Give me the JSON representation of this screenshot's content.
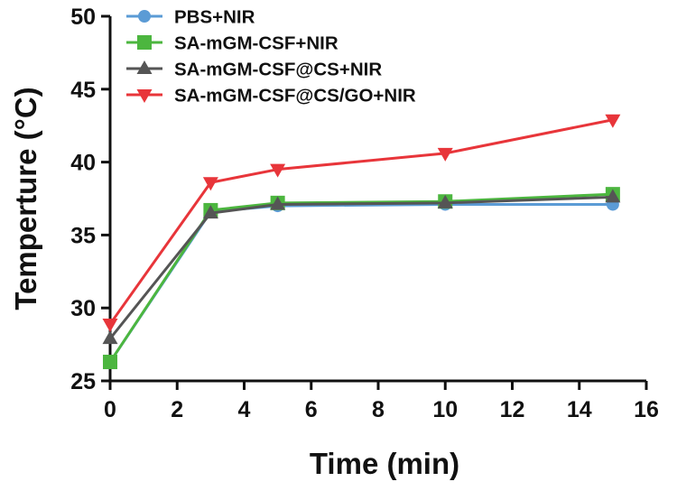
{
  "chart_data": {
    "type": "line",
    "title": "",
    "xlabel": "Time (min)",
    "ylabel": "Temperture (°C)",
    "xlim": [
      0,
      16
    ],
    "ylim": [
      25,
      50
    ],
    "x_ticks": [
      0,
      2,
      4,
      6,
      8,
      10,
      12,
      14,
      16
    ],
    "y_ticks": [
      25,
      30,
      35,
      40,
      45,
      50
    ],
    "x_tick_labels": [
      "0",
      "2",
      "4",
      "6",
      "8",
      "10",
      "12",
      "14",
      "16"
    ],
    "y_tick_labels": [
      "25",
      "30",
      "35",
      "40",
      "45",
      "50"
    ],
    "grid": false,
    "legend_position": "top-left",
    "x": [
      0,
      3,
      5,
      10,
      15
    ],
    "series": [
      {
        "name": "PBS+NIR",
        "values": [
          26.3,
          36.6,
          37.0,
          37.1,
          37.1
        ],
        "color": "#5B9BD5",
        "marker": "circle"
      },
      {
        "name": "SA-mGM-CSF+NIR",
        "values": [
          26.3,
          36.7,
          37.2,
          37.3,
          37.8
        ],
        "color": "#4CB63F",
        "marker": "square"
      },
      {
        "name": "SA-mGM-CSF@CS+NIR",
        "values": [
          27.9,
          36.5,
          37.1,
          37.2,
          37.6
        ],
        "color": "#555555",
        "marker": "triangle-up"
      },
      {
        "name": "SA-mGM-CSF@CS/GO+NIR",
        "values": [
          28.9,
          38.6,
          39.5,
          40.6,
          42.9
        ],
        "color": "#E8353A",
        "marker": "triangle-down"
      }
    ]
  }
}
